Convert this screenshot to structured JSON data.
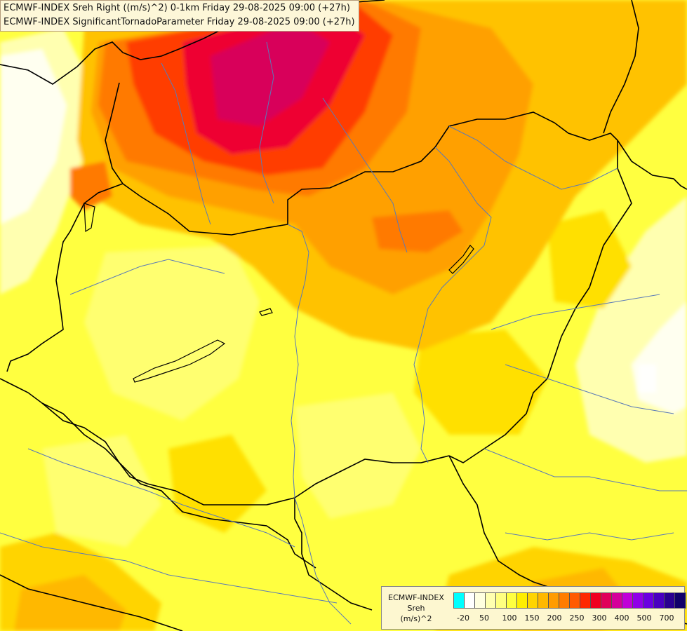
{
  "title": {
    "line1": "ECMWF-INDEX Sreh Right ((m/s)^2) 0-1km Friday 29-08-2025 09:00 (+27h)",
    "line2": "ECMWF-INDEX SignificantTornadoParameter Friday 29-08-2025 09:00 (+27h)"
  },
  "legend": {
    "line1": "ECMWF-INDEX",
    "line2": "Sreh",
    "line3": "(m/s)^2",
    "colors": [
      "#00ffff",
      "#ffffff",
      "#ffffe0",
      "#ffffb0",
      "#ffff80",
      "#ffff40",
      "#ffee00",
      "#ffd400",
      "#ffb800",
      "#ff9c00",
      "#ff7c00",
      "#ff5a00",
      "#ff2800",
      "#f00020",
      "#e0005a",
      "#d4009a",
      "#c000d8",
      "#9000e8",
      "#6a00e0",
      "#4a00c0",
      "#2a0090",
      "#10006a"
    ],
    "tick_labels": [
      "-20",
      "50",
      "100",
      "150",
      "200",
      "250",
      "300",
      "400",
      "500",
      "700"
    ]
  },
  "map_layers": {
    "fill_colors": [
      "#fffff0",
      "#ffffc0",
      "#ffff80",
      "#ffff20",
      "#ffe600",
      "#ffcc00",
      "#ffaa00",
      "#ff8800",
      "#ff5a00",
      "#ff2a00",
      "#ee0033",
      "#d8005a"
    ],
    "border_color": "#000000",
    "river_color": "#5a7ab8"
  }
}
